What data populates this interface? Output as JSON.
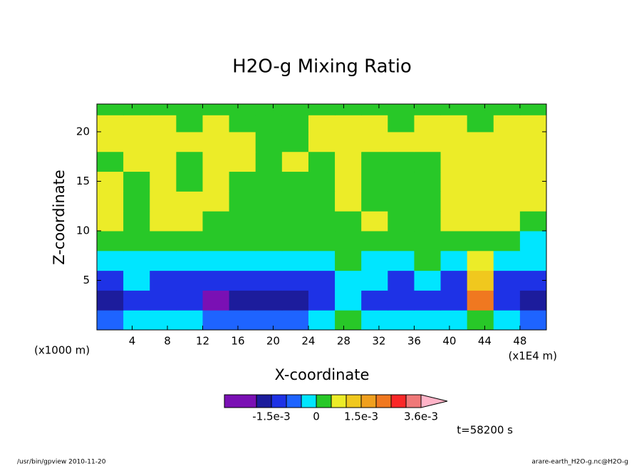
{
  "chart_data": {
    "type": "contour",
    "title": "H2O-g Mixing Ratio",
    "xlabel": "X-coordinate",
    "ylabel": "Z-coordinate",
    "x_unit_left": "(x1000 m)",
    "x_unit_right": "(x1E4 m)",
    "time_label": "t=58200 s",
    "footer_left": "/usr/bin/gpview  2010-11-20",
    "footer_right": "arare-earth_H2O-g.nc@H2O-g",
    "xlim": [
      0,
      51
    ],
    "ylim": [
      0,
      22.8
    ],
    "xticks": [
      4,
      8,
      12,
      16,
      20,
      24,
      28,
      32,
      36,
      40,
      44,
      48
    ],
    "yticks": [
      5,
      10,
      15,
      20
    ],
    "x": [
      1.5,
      4.5,
      7.5,
      10.5,
      13.5,
      16.5,
      19.5,
      22.5,
      25.5,
      28.5,
      31.5,
      34.5,
      37.5,
      40.5,
      43.5,
      46.5,
      49.5
    ],
    "z": [
      1,
      3,
      5,
      7,
      9,
      11,
      13,
      15,
      17,
      19,
      21,
      22.4
    ],
    "values": [
      [
        -0.0008,
        -0.0003,
        -0.0003,
        -0.0003,
        -0.0008,
        -0.0008,
        -0.0008,
        -0.0008,
        -0.0003,
        0.0003,
        -0.0003,
        -0.0003,
        -0.0003,
        -0.0003,
        0.0003,
        -0.0003,
        -0.0008
      ],
      [
        -0.0018,
        -0.0013,
        -0.0013,
        -0.0013,
        -0.0023,
        -0.0018,
        -0.0018,
        -0.0018,
        -0.0013,
        -0.0003,
        -0.0013,
        -0.0013,
        -0.0013,
        -0.0013,
        0.0022,
        -0.0013,
        -0.0018
      ],
      [
        -0.0013,
        -0.0003,
        -0.0013,
        -0.0013,
        -0.0013,
        -0.0013,
        -0.0013,
        -0.0013,
        -0.0013,
        -0.0003,
        -0.0003,
        -0.0013,
        -0.0003,
        -0.0013,
        0.0013,
        -0.0013,
        -0.0013
      ],
      [
        -0.0003,
        -0.0003,
        -0.0003,
        -0.0003,
        -0.0003,
        -0.0003,
        -0.0003,
        -0.0003,
        -0.0003,
        0.0003,
        -0.0003,
        -0.0003,
        0.0003,
        -0.0003,
        0.0008,
        -0.0003,
        -0.0003
      ],
      [
        0.0003,
        0.0003,
        0.0003,
        0.0003,
        0.0003,
        0.0003,
        0.0003,
        0.0003,
        0.0003,
        0.0003,
        0.0003,
        0.0003,
        0.0003,
        0.0003,
        0.0003,
        0.0003,
        -0.0003
      ],
      [
        0.0008,
        0.0003,
        0.0008,
        0.0008,
        0.0003,
        0.0003,
        0.0003,
        0.0003,
        0.0003,
        0.0003,
        0.0008,
        0.0003,
        0.0003,
        0.0008,
        0.0008,
        0.0008,
        0.0003
      ],
      [
        0.0008,
        0.0003,
        0.0008,
        0.0008,
        0.0008,
        0.0003,
        0.0003,
        0.0003,
        0.0003,
        0.0008,
        0.0003,
        0.0003,
        0.0003,
        0.0008,
        0.0008,
        0.0008,
        0.0008
      ],
      [
        0.0008,
        0.0003,
        0.0008,
        0.0003,
        0.0008,
        0.0003,
        0.0003,
        0.0003,
        0.0003,
        0.0008,
        0.0003,
        0.0003,
        0.0003,
        0.0008,
        0.0008,
        0.0008,
        0.0008
      ],
      [
        0.0003,
        0.0008,
        0.0008,
        0.0003,
        0.0008,
        0.0008,
        0.0003,
        0.0008,
        0.0003,
        0.0008,
        0.0003,
        0.0003,
        0.0003,
        0.0008,
        0.0008,
        0.0008,
        0.0008
      ],
      [
        0.0008,
        0.0008,
        0.0008,
        0.0008,
        0.0008,
        0.0008,
        0.0003,
        0.0003,
        0.0008,
        0.0008,
        0.0008,
        0.0008,
        0.0008,
        0.0008,
        0.0008,
        0.0008,
        0.0008
      ],
      [
        0.0008,
        0.0008,
        0.0008,
        0.0003,
        0.0008,
        0.0003,
        0.0003,
        0.0003,
        0.0008,
        0.0008,
        0.0008,
        0.0003,
        0.0008,
        0.0008,
        0.0003,
        0.0008,
        0.0008
      ],
      [
        0.0003,
        0.0003,
        0.0003,
        0.0003,
        0.0003,
        0.0003,
        0.0003,
        0.0003,
        0.0003,
        0.0003,
        0.0003,
        0.0003,
        0.0003,
        0.0003,
        0.0003,
        0.0003,
        0.0003
      ]
    ],
    "levels": [
      -0.002,
      -0.0015,
      -0.001,
      -0.0005,
      0,
      0.0005,
      0.001,
      0.0015,
      0.002,
      0.0025,
      0.003,
      0.0036
    ],
    "colors": [
      "#7a10b4",
      "#1c1c9c",
      "#1e32e6",
      "#1e64ff",
      "#00e6ff",
      "#28c828",
      "#ecec28",
      "#f0c81e",
      "#f0a01e",
      "#f07820",
      "#fa2828",
      "#f07878",
      "#ffb4c8"
    ],
    "colorbar_ticks": [
      {
        "value": -0.0015,
        "label": "-1.5e-3"
      },
      0,
      {
        "value": 0.0015,
        "label": "1.5e-3"
      },
      {
        "value": 0.0036,
        "label": "3.6e-3"
      }
    ]
  }
}
